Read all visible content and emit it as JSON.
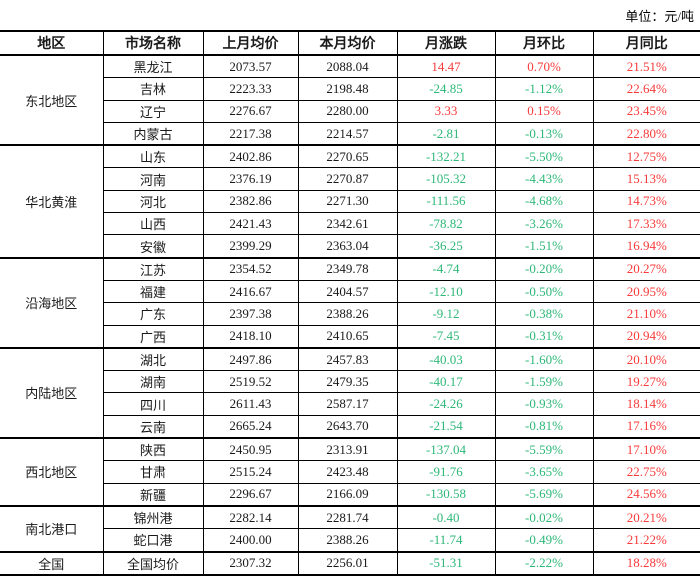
{
  "unit_label": "单位：元/吨",
  "table": {
    "headers": [
      "地区",
      "市场名称",
      "上月均价",
      "本月均价",
      "月涨跌",
      "月环比",
      "月同比"
    ],
    "colors": {
      "positive": "#f83b3b",
      "negative": "#2eb878"
    },
    "groups": [
      {
        "region": "东北地区",
        "rows": [
          {
            "market": "黑龙江",
            "last": "2073.57",
            "current": "2088.04",
            "change": "14.47",
            "mom": "0.70%",
            "yoy": "21.51%"
          },
          {
            "market": "吉林",
            "last": "2223.33",
            "current": "2198.48",
            "change": "-24.85",
            "mom": "-1.12%",
            "yoy": "22.64%"
          },
          {
            "market": "辽宁",
            "last": "2276.67",
            "current": "2280.00",
            "change": "3.33",
            "mom": "0.15%",
            "yoy": "23.45%"
          },
          {
            "market": "内蒙古",
            "last": "2217.38",
            "current": "2214.57",
            "change": "-2.81",
            "mom": "-0.13%",
            "yoy": "22.80%"
          }
        ]
      },
      {
        "region": "华北黄淮",
        "rows": [
          {
            "market": "山东",
            "last": "2402.86",
            "current": "2270.65",
            "change": "-132.21",
            "mom": "-5.50%",
            "yoy": "12.75%"
          },
          {
            "market": "河南",
            "last": "2376.19",
            "current": "2270.87",
            "change": "-105.32",
            "mom": "-4.43%",
            "yoy": "15.13%"
          },
          {
            "market": "河北",
            "last": "2382.86",
            "current": "2271.30",
            "change": "-111.56",
            "mom": "-4.68%",
            "yoy": "14.73%"
          },
          {
            "market": "山西",
            "last": "2421.43",
            "current": "2342.61",
            "change": "-78.82",
            "mom": "-3.26%",
            "yoy": "17.33%"
          },
          {
            "market": "安徽",
            "last": "2399.29",
            "current": "2363.04",
            "change": "-36.25",
            "mom": "-1.51%",
            "yoy": "16.94%"
          }
        ]
      },
      {
        "region": "沿海地区",
        "rows": [
          {
            "market": "江苏",
            "last": "2354.52",
            "current": "2349.78",
            "change": "-4.74",
            "mom": "-0.20%",
            "yoy": "20.27%"
          },
          {
            "market": "福建",
            "last": "2416.67",
            "current": "2404.57",
            "change": "-12.10",
            "mom": "-0.50%",
            "yoy": "20.95%"
          },
          {
            "market": "广东",
            "last": "2397.38",
            "current": "2388.26",
            "change": "-9.12",
            "mom": "-0.38%",
            "yoy": "21.10%"
          },
          {
            "market": "广西",
            "last": "2418.10",
            "current": "2410.65",
            "change": "-7.45",
            "mom": "-0.31%",
            "yoy": "20.94%"
          }
        ]
      },
      {
        "region": "内陆地区",
        "rows": [
          {
            "market": "湖北",
            "last": "2497.86",
            "current": "2457.83",
            "change": "-40.03",
            "mom": "-1.60%",
            "yoy": "20.10%"
          },
          {
            "market": "湖南",
            "last": "2519.52",
            "current": "2479.35",
            "change": "-40.17",
            "mom": "-1.59%",
            "yoy": "19.27%"
          },
          {
            "market": "四川",
            "last": "2611.43",
            "current": "2587.17",
            "change": "-24.26",
            "mom": "-0.93%",
            "yoy": "18.14%"
          },
          {
            "market": "云南",
            "last": "2665.24",
            "current": "2643.70",
            "change": "-21.54",
            "mom": "-0.81%",
            "yoy": "17.16%"
          }
        ]
      },
      {
        "region": "西北地区",
        "rows": [
          {
            "market": "陕西",
            "last": "2450.95",
            "current": "2313.91",
            "change": "-137.04",
            "mom": "-5.59%",
            "yoy": "17.10%"
          },
          {
            "market": "甘肃",
            "last": "2515.24",
            "current": "2423.48",
            "change": "-91.76",
            "mom": "-3.65%",
            "yoy": "22.75%"
          },
          {
            "market": "新疆",
            "last": "2296.67",
            "current": "2166.09",
            "change": "-130.58",
            "mom": "-5.69%",
            "yoy": "24.56%"
          }
        ]
      },
      {
        "region": "南北港口",
        "rows": [
          {
            "market": "锦州港",
            "last": "2282.14",
            "current": "2281.74",
            "change": "-0.40",
            "mom": "-0.02%",
            "yoy": "20.21%"
          },
          {
            "market": "蛇口港",
            "last": "2400.00",
            "current": "2388.26",
            "change": "-11.74",
            "mom": "-0.49%",
            "yoy": "21.22%"
          }
        ]
      },
      {
        "region": "全国",
        "rows": [
          {
            "market": "全国均价",
            "last": "2307.32",
            "current": "2256.01",
            "change": "-51.31",
            "mom": "-2.22%",
            "yoy": "18.28%"
          }
        ]
      }
    ]
  }
}
